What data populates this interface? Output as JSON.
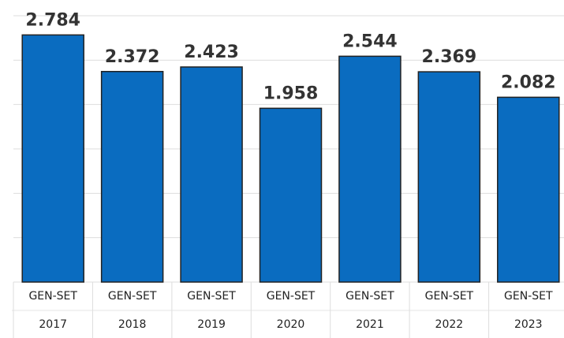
{
  "chart_data": {
    "type": "bar",
    "categories": [
      "GEN-SET 2017",
      "GEN-SET 2018",
      "GEN-SET 2019",
      "GEN-SET 2020",
      "GEN-SET 2021",
      "GEN-SET 2022",
      "GEN-SET 2023"
    ],
    "values": [
      2.784,
      2.372,
      2.423,
      1.958,
      2.544,
      2.369,
      2.082
    ],
    "color": "#0a6cc0",
    "ylim": [
      0,
      3
    ],
    "yticks": [
      0,
      0.5,
      1,
      1.5,
      2,
      2.5,
      3
    ],
    "grid": true
  }
}
